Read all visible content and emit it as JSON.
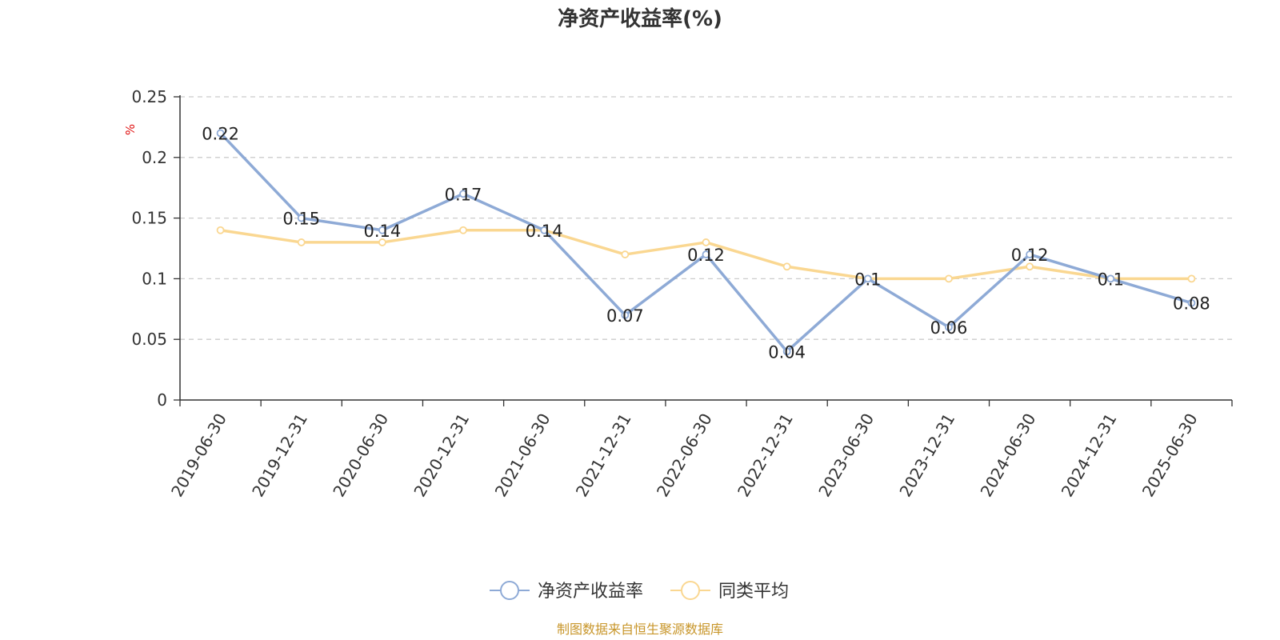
{
  "chart_data": {
    "type": "line",
    "title": "净资产收益率(%)",
    "ylabel": "%",
    "categories": [
      "2019-06-30",
      "2019-12-31",
      "2020-06-30",
      "2020-12-31",
      "2021-06-30",
      "2021-12-31",
      "2022-06-30",
      "2022-12-31",
      "2023-06-30",
      "2023-12-31",
      "2024-06-30",
      "2024-12-31",
      "2025-06-30"
    ],
    "ylim": [
      0,
      0.25
    ],
    "yticks": [
      "0",
      "0.05",
      "0.1",
      "0.15",
      "0.2",
      "0.25"
    ],
    "ytick_values": [
      0,
      0.05,
      0.1,
      0.15,
      0.2,
      0.25
    ],
    "grid": "horizontal dashed",
    "legend_position": "bottom-center",
    "series": [
      {
        "name": "净资产收益率",
        "color": "#8eaad6",
        "values": [
          0.22,
          0.15,
          0.14,
          0.17,
          0.14,
          0.07,
          0.12,
          0.04,
          0.1,
          0.06,
          0.12,
          0.1,
          0.08
        ],
        "data_labels": [
          "0.22",
          "0.15",
          "0.14",
          "0.17",
          "0.14",
          "0.07",
          "0.12",
          "0.04",
          "0.1",
          "0.06",
          "0.12",
          "0.1",
          "0.08"
        ]
      },
      {
        "name": "同类平均",
        "color": "#fad791",
        "values": [
          0.14,
          0.13,
          0.13,
          0.14,
          0.14,
          0.12,
          0.13,
          0.11,
          0.1,
          0.1,
          0.11,
          0.1,
          0.1
        ]
      }
    ],
    "source": "制图数据来自恒生聚源数据库"
  }
}
